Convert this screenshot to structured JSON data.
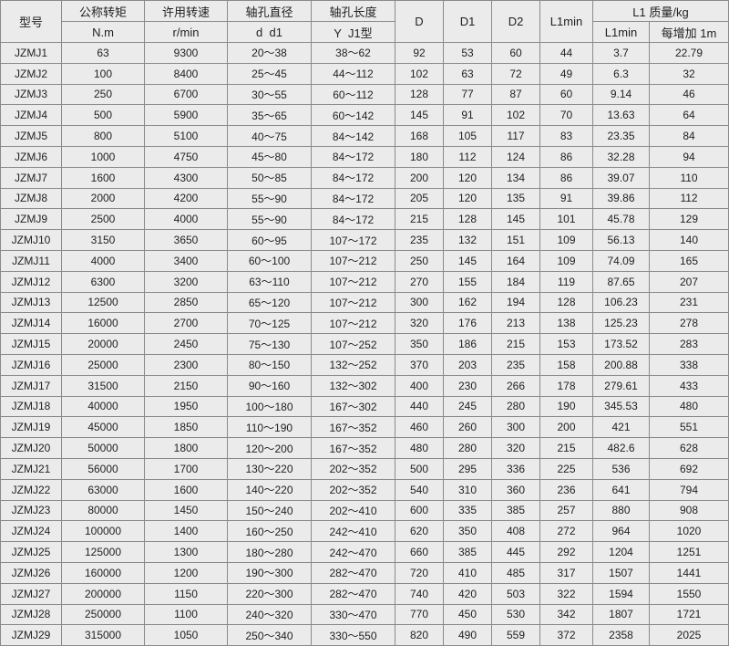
{
  "header": {
    "model": "型号",
    "torque": "公称转矩",
    "torque_unit": "N.m",
    "speed": "许用转速",
    "speed_unit": "r/min",
    "bore_diameter": "轴孔直径",
    "bore_diameter_sub": "d  d1",
    "bore_length": "轴孔长度",
    "bore_length_sub": "Y  J1型",
    "D": "D",
    "D1": "D1",
    "D2": "D2",
    "L1min": "L1min",
    "mass": "L1 质量/kg",
    "mass_l1min": "L1min",
    "mass_per_m": "每增加 1m"
  },
  "rows": [
    [
      "JZMJ1",
      "63",
      "9300",
      "20～38",
      "38～62",
      "92",
      "53",
      "60",
      "44",
      "3.7",
      "22.79"
    ],
    [
      "JZMJ2",
      "100",
      "8400",
      "25～45",
      "44～112",
      "102",
      "63",
      "72",
      "49",
      "6.3",
      "32"
    ],
    [
      "JZMJ3",
      "250",
      "6700",
      "30～55",
      "60～112",
      "128",
      "77",
      "87",
      "60",
      "9.14",
      "46"
    ],
    [
      "JZMJ4",
      "500",
      "5900",
      "35～65",
      "60～142",
      "145",
      "91",
      "102",
      "70",
      "13.63",
      "64"
    ],
    [
      "JZMJ5",
      "800",
      "5100",
      "40～75",
      "84～142",
      "168",
      "105",
      "117",
      "83",
      "23.35",
      "84"
    ],
    [
      "JZMJ6",
      "1000",
      "4750",
      "45～80",
      "84～172",
      "180",
      "112",
      "124",
      "86",
      "32.28",
      "94"
    ],
    [
      "JZMJ7",
      "1600",
      "4300",
      "50～85",
      "84～172",
      "200",
      "120",
      "134",
      "86",
      "39.07",
      "110"
    ],
    [
      "JZMJ8",
      "2000",
      "4200",
      "55～90",
      "84～172",
      "205",
      "120",
      "135",
      "91",
      "39.86",
      "112"
    ],
    [
      "JZMJ9",
      "2500",
      "4000",
      "55～90",
      "84～172",
      "215",
      "128",
      "145",
      "101",
      "45.78",
      "129"
    ],
    [
      "JZMJ10",
      "3150",
      "3650",
      "60～95",
      "107～172",
      "235",
      "132",
      "151",
      "109",
      "56.13",
      "140"
    ],
    [
      "JZMJ11",
      "4000",
      "3400",
      "60～100",
      "107～212",
      "250",
      "145",
      "164",
      "109",
      "74.09",
      "165"
    ],
    [
      "JZMJ12",
      "6300",
      "3200",
      "63～110",
      "107～212",
      "270",
      "155",
      "184",
      "119",
      "87.65",
      "207"
    ],
    [
      "JZMJ13",
      "12500",
      "2850",
      "65～120",
      "107～212",
      "300",
      "162",
      "194",
      "128",
      "106.23",
      "231"
    ],
    [
      "JZMJ14",
      "16000",
      "2700",
      "70～125",
      "107～212",
      "320",
      "176",
      "213",
      "138",
      "125.23",
      "278"
    ],
    [
      "JZMJ15",
      "20000",
      "2450",
      "75～130",
      "107～252",
      "350",
      "186",
      "215",
      "153",
      "173.52",
      "283"
    ],
    [
      "JZMJ16",
      "25000",
      "2300",
      "80～150",
      "132～252",
      "370",
      "203",
      "235",
      "158",
      "200.88",
      "338"
    ],
    [
      "JZMJ17",
      "31500",
      "2150",
      "90～160",
      "132～302",
      "400",
      "230",
      "266",
      "178",
      "279.61",
      "433"
    ],
    [
      "JZMJ18",
      "40000",
      "1950",
      "100～180",
      "167～302",
      "440",
      "245",
      "280",
      "190",
      "345.53",
      "480"
    ],
    [
      "JZMJ19",
      "45000",
      "1850",
      "110～190",
      "167～352",
      "460",
      "260",
      "300",
      "200",
      "421",
      "551"
    ],
    [
      "JZMJ20",
      "50000",
      "1800",
      "120～200",
      "167～352",
      "480",
      "280",
      "320",
      "215",
      "482.6",
      "628"
    ],
    [
      "JZMJ21",
      "56000",
      "1700",
      "130～220",
      "202～352",
      "500",
      "295",
      "336",
      "225",
      "536",
      "692"
    ],
    [
      "JZMJ22",
      "63000",
      "1600",
      "140～220",
      "202～352",
      "540",
      "310",
      "360",
      "236",
      "641",
      "794"
    ],
    [
      "JZMJ23",
      "80000",
      "1450",
      "150～240",
      "202～410",
      "600",
      "335",
      "385",
      "257",
      "880",
      "908"
    ],
    [
      "JZMJ24",
      "100000",
      "1400",
      "160～250",
      "242～410",
      "620",
      "350",
      "408",
      "272",
      "964",
      "1020"
    ],
    [
      "JZMJ25",
      "125000",
      "1300",
      "180～280",
      "242～470",
      "660",
      "385",
      "445",
      "292",
      "1204",
      "1251"
    ],
    [
      "JZMJ26",
      "160000",
      "1200",
      "190～300",
      "282～470",
      "720",
      "410",
      "485",
      "317",
      "1507",
      "1441"
    ],
    [
      "JZMJ27",
      "200000",
      "1150",
      "220～300",
      "282～470",
      "740",
      "420",
      "503",
      "322",
      "1594",
      "1550"
    ],
    [
      "JZMJ28",
      "250000",
      "1100",
      "240～320",
      "330～470",
      "770",
      "450",
      "530",
      "342",
      "1807",
      "1721"
    ],
    [
      "JZMJ29",
      "315000",
      "1050",
      "250～340",
      "330～550",
      "820",
      "490",
      "559",
      "372",
      "2358",
      "2025"
    ]
  ]
}
